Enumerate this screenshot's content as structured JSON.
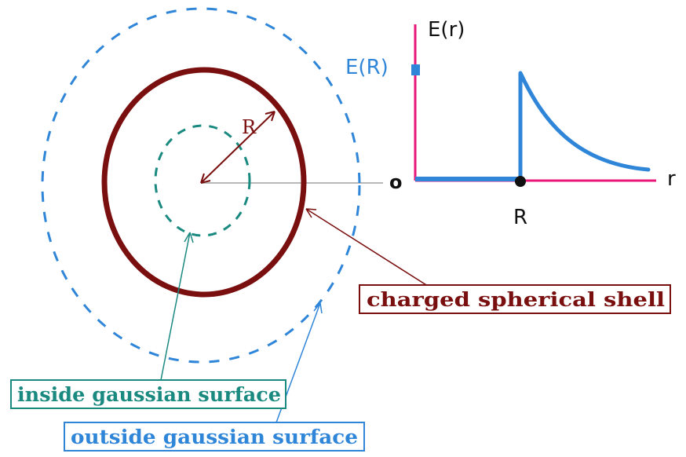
{
  "labels": {
    "radius": "R",
    "axis_y": "E(r)",
    "axis_x": "r",
    "origin": "o",
    "e_at_r": "E(R)",
    "r_tick": "R"
  },
  "callouts": {
    "shell": "charged spherical shell",
    "inside": "inside gaussian surface",
    "outside": "outside gaussian surface"
  },
  "colors": {
    "shell": "#7a0f0f",
    "inside": "#1a8a80",
    "outside": "#2f86d8",
    "axes": "#e8157a",
    "curve": "#2f86d8",
    "center_line": "#b8b8b8"
  }
}
